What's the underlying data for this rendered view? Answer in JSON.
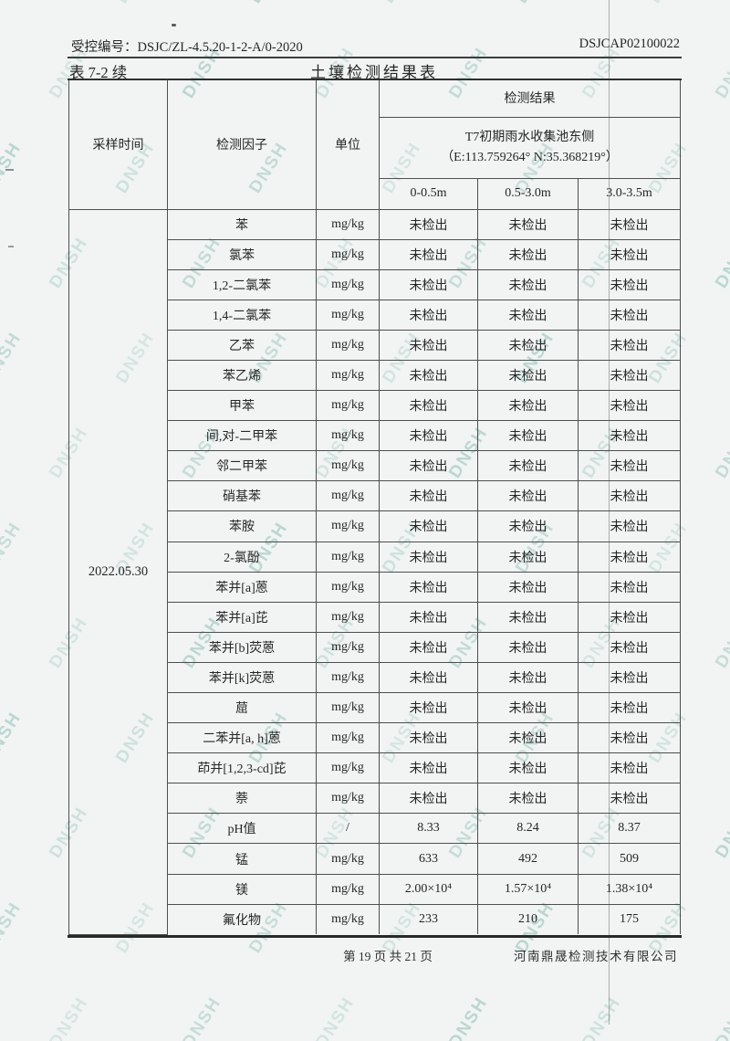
{
  "page": {
    "header": {
      "control_number_label": "受控编号：DSJC/ZL-4.5.20-1-2-A/0-2020",
      "report_number": "DSJCAP02100022",
      "table_ref": "表 7-2 续",
      "title": "土壤检测结果表"
    },
    "footer": {
      "page_info": "第 19 页 共 21 页",
      "company": "河南鼎晟检测技术有限公司"
    },
    "watermark": {
      "text": "DNSH",
      "color": "#a3cbc3"
    },
    "colors": {
      "paper": "#f1f4f3",
      "border": "#4d4f4d",
      "watermark": "#a3cbc3"
    }
  },
  "table": {
    "headers": {
      "sampling_time": "采样时间",
      "factor": "检测因子",
      "unit": "单位",
      "result": "检测结果",
      "location_line1": "T7初期雨水收集池东侧",
      "location_line2": "（E:113.759264° N:35.368219°）",
      "depths": [
        "0-0.5m",
        "0.5-3.0m",
        "3.0-3.5m"
      ]
    },
    "sampling_date": "2022.05.30",
    "rows": [
      {
        "factor": "苯",
        "unit": "mg/kg",
        "values": [
          "未检出",
          "未检出",
          "未检出"
        ]
      },
      {
        "factor": "氯苯",
        "unit": "mg/kg",
        "values": [
          "未检出",
          "未检出",
          "未检出"
        ]
      },
      {
        "factor": "1,2-二氯苯",
        "unit": "mg/kg",
        "values": [
          "未检出",
          "未检出",
          "未检出"
        ]
      },
      {
        "factor": "1,4-二氯苯",
        "unit": "mg/kg",
        "values": [
          "未检出",
          "未检出",
          "未检出"
        ]
      },
      {
        "factor": "乙苯",
        "unit": "mg/kg",
        "values": [
          "未检出",
          "未检出",
          "未检出"
        ]
      },
      {
        "factor": "苯乙烯",
        "unit": "mg/kg",
        "values": [
          "未检出",
          "未检出",
          "未检出"
        ]
      },
      {
        "factor": "甲苯",
        "unit": "mg/kg",
        "values": [
          "未检出",
          "未检出",
          "未检出"
        ]
      },
      {
        "factor": "间,对-二甲苯",
        "unit": "mg/kg",
        "values": [
          "未检出",
          "未检出",
          "未检出"
        ]
      },
      {
        "factor": "邻二甲苯",
        "unit": "mg/kg",
        "values": [
          "未检出",
          "未检出",
          "未检出"
        ]
      },
      {
        "factor": "硝基苯",
        "unit": "mg/kg",
        "values": [
          "未检出",
          "未检出",
          "未检出"
        ]
      },
      {
        "factor": "苯胺",
        "unit": "mg/kg",
        "values": [
          "未检出",
          "未检出",
          "未检出"
        ]
      },
      {
        "factor": "2-氯酚",
        "unit": "mg/kg",
        "values": [
          "未检出",
          "未检出",
          "未检出"
        ]
      },
      {
        "factor": "苯并[a]蒽",
        "unit": "mg/kg",
        "values": [
          "未检出",
          "未检出",
          "未检出"
        ]
      },
      {
        "factor": "苯并[a]芘",
        "unit": "mg/kg",
        "values": [
          "未检出",
          "未检出",
          "未检出"
        ]
      },
      {
        "factor": "苯并[b]荧蒽",
        "unit": "mg/kg",
        "values": [
          "未检出",
          "未检出",
          "未检出"
        ]
      },
      {
        "factor": "苯并[k]荧蒽",
        "unit": "mg/kg",
        "values": [
          "未检出",
          "未检出",
          "未检出"
        ]
      },
      {
        "factor": "䓛",
        "unit": "mg/kg",
        "values": [
          "未检出",
          "未检出",
          "未检出"
        ]
      },
      {
        "factor": "二苯并[a, h]蒽",
        "unit": "mg/kg",
        "values": [
          "未检出",
          "未检出",
          "未检出"
        ]
      },
      {
        "factor": "茚并[1,2,3-cd]芘",
        "unit": "mg/kg",
        "values": [
          "未检出",
          "未检出",
          "未检出"
        ]
      },
      {
        "factor": "萘",
        "unit": "mg/kg",
        "values": [
          "未检出",
          "未检出",
          "未检出"
        ]
      },
      {
        "factor": "pH值",
        "unit": "/",
        "values": [
          "8.33",
          "8.24",
          "8.37"
        ]
      },
      {
        "factor": "锰",
        "unit": "mg/kg",
        "values": [
          "633",
          "492",
          "509"
        ]
      },
      {
        "factor": "镁",
        "unit": "mg/kg",
        "values": [
          "2.00×10⁴",
          "1.57×10⁴",
          "1.38×10⁴"
        ]
      },
      {
        "factor": "氟化物",
        "unit": "mg/kg",
        "values": [
          "233",
          "210",
          "175"
        ]
      }
    ]
  }
}
